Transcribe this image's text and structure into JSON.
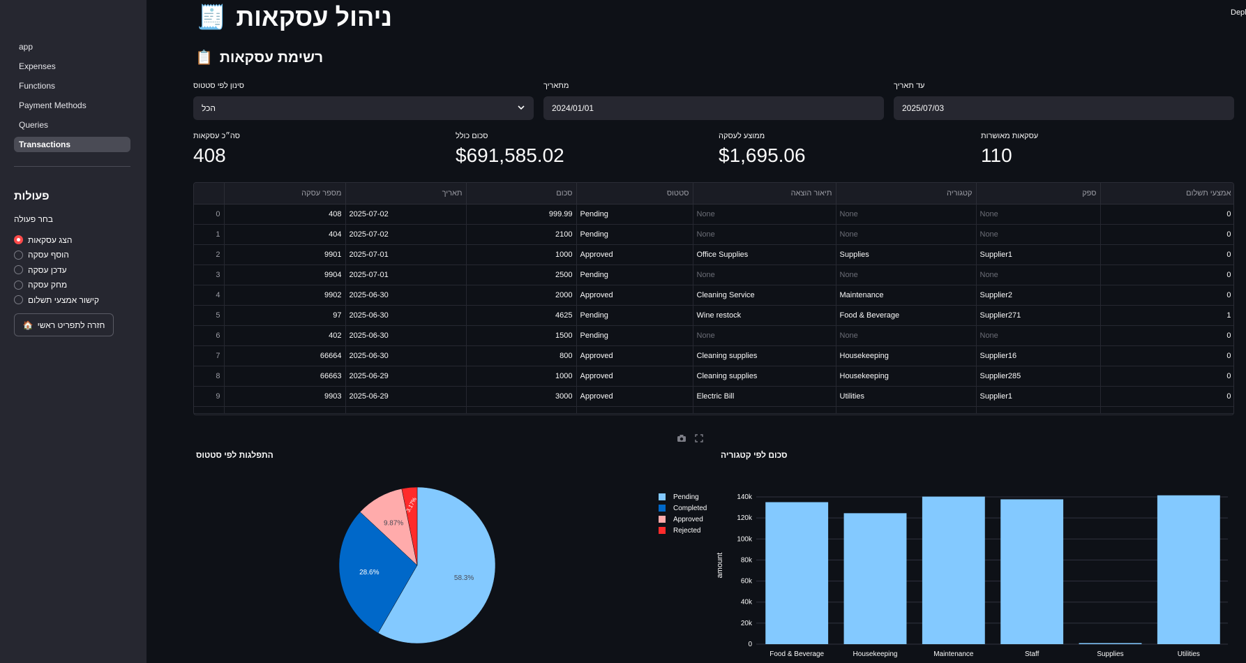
{
  "sidebar": {
    "nav": [
      {
        "label": "app",
        "active": false
      },
      {
        "label": "Expenses",
        "active": false
      },
      {
        "label": "Functions",
        "active": false
      },
      {
        "label": "Payment Methods",
        "active": false
      },
      {
        "label": "Queries",
        "active": false
      },
      {
        "label": "Transactions",
        "active": true
      }
    ],
    "actions_heading": "פעולות",
    "radio_label": "בחר פעולה",
    "radio_options": [
      "הצג עסקאות",
      "הוסף עסקה",
      "עדכן עסקה",
      "מחק עסקה",
      "קישור אמצעי תשלום"
    ],
    "radio_selected": 0,
    "home_button": "חזרה לתפריט ראשי",
    "home_icon": "house-emoji"
  },
  "header": {
    "deploy": "Deploy",
    "title": "ניהול עסקאות",
    "title_icon": "receipt-emoji",
    "subtitle": "רשימת עסקאות",
    "subtitle_icon": "clipboard-emoji"
  },
  "filters": {
    "status_label": "סינון לפי סטטוס",
    "status_value": "הכל",
    "from_label": "מתאריך",
    "from_value": "2024/01/01",
    "to_label": "עד תאריך",
    "to_value": "2025/07/03"
  },
  "metrics": [
    {
      "label": "סה״כ עסקאות",
      "value": "408"
    },
    {
      "label": "סכום כולל",
      "value": "$691,585.02"
    },
    {
      "label": "ממוצע לעסקה",
      "value": "$1,695.06"
    },
    {
      "label": "עסקאות מאושרות",
      "value": "110"
    }
  ],
  "table": {
    "columns": [
      "",
      "מספר עסקה",
      "תאריך",
      "סכום",
      "סטטוס",
      "תיאור הוצאה",
      "קטגוריה",
      "ספק",
      "אמצעי תשלום"
    ],
    "rows": [
      [
        "0",
        "408",
        "2025-07-02",
        "999.99",
        "Pending",
        "None",
        "None",
        "None",
        "0"
      ],
      [
        "1",
        "404",
        "2025-07-02",
        "2100",
        "Pending",
        "None",
        "None",
        "None",
        "0"
      ],
      [
        "2",
        "9901",
        "2025-07-01",
        "1000",
        "Approved",
        "Office Supplies",
        "Supplies",
        "Supplier1",
        "0"
      ],
      [
        "3",
        "9904",
        "2025-07-01",
        "2500",
        "Pending",
        "None",
        "None",
        "None",
        "0"
      ],
      [
        "4",
        "9902",
        "2025-06-30",
        "2000",
        "Approved",
        "Cleaning Service",
        "Maintenance",
        "Supplier2",
        "0"
      ],
      [
        "5",
        "97",
        "2025-06-30",
        "4625",
        "Pending",
        "Wine restock",
        "Food & Beverage",
        "Supplier271",
        "1"
      ],
      [
        "6",
        "402",
        "2025-06-30",
        "1500",
        "Pending",
        "None",
        "None",
        "None",
        "0"
      ],
      [
        "7",
        "66664",
        "2025-06-30",
        "800",
        "Approved",
        "Cleaning supplies",
        "Housekeeping",
        "Supplier16",
        "0"
      ],
      [
        "8",
        "66663",
        "2025-06-29",
        "1000",
        "Approved",
        "Cleaning supplies",
        "Housekeeping",
        "Supplier285",
        "0"
      ],
      [
        "9",
        "9903",
        "2025-06-29",
        "3000",
        "Approved",
        "Electric Bill",
        "Utilities",
        "Supplier1",
        "0"
      ]
    ]
  },
  "toolbar": {
    "camera": "camera-icon",
    "fullscreen": "fullscreen-icon"
  },
  "chart_data": [
    {
      "type": "pie",
      "title": "התפלגות לפי סטטוס",
      "labels": [
        "Pending",
        "Completed",
        "Approved",
        "Rejected"
      ],
      "values": [
        58.3,
        28.6,
        9.87,
        3.17
      ],
      "value_labels": [
        "58.3%",
        "28.6%",
        "9.87%",
        "3.17%"
      ],
      "colors": [
        "#83c9ff",
        "#0068c9",
        "#ffabab",
        "#ff2b2b"
      ],
      "legend": "right"
    },
    {
      "type": "bar",
      "title": "סכום לפי קטגוריה",
      "categories": [
        "Food & Beverage",
        "Housekeeping",
        "Maintenance",
        "Staff",
        "Supplies",
        "Utilities"
      ],
      "values": [
        135000,
        124500,
        140300,
        137700,
        1000,
        141500
      ],
      "ylabel": "amount",
      "xlabel": "",
      "ylim": [
        0,
        140000
      ],
      "yticks": [
        "0",
        "20k",
        "40k",
        "60k",
        "80k",
        "100k",
        "120k",
        "140k"
      ],
      "color": "#83c9ff",
      "grid": true
    }
  ]
}
